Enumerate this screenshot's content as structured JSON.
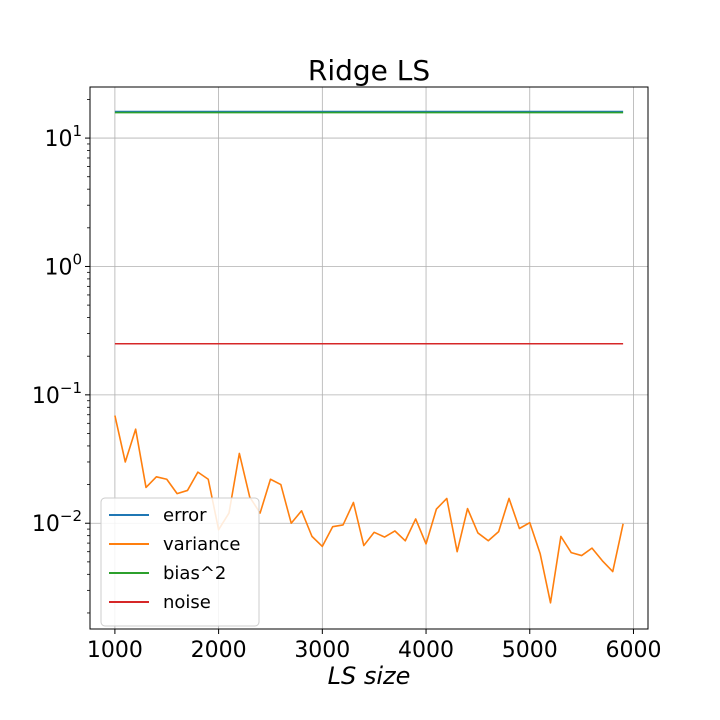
{
  "chart_data": {
    "type": "line",
    "title": "Ridge LS",
    "xlabel": "LS size",
    "ylabel": "",
    "yscale": "log",
    "xlim": [
      760,
      6140
    ],
    "ylim": [
      0.0015,
      25
    ],
    "xticks": [
      1000,
      2000,
      3000,
      4000,
      5000,
      6000
    ],
    "yticks": [
      {
        "value": 10,
        "base": "10",
        "exp": "1"
      },
      {
        "value": 1,
        "base": "10",
        "exp": "0"
      },
      {
        "value": 0.1,
        "base": "10",
        "exp": "−1"
      },
      {
        "value": 0.01,
        "base": "10",
        "exp": "−2"
      }
    ],
    "grid": true,
    "legend_position": "lower-left",
    "x": [
      1000,
      1100,
      1200,
      1300,
      1400,
      1500,
      1600,
      1700,
      1800,
      1900,
      2000,
      2100,
      2200,
      2300,
      2400,
      2500,
      2600,
      2700,
      2800,
      2900,
      3000,
      3100,
      3200,
      3300,
      3400,
      3500,
      3600,
      3700,
      3800,
      3900,
      4000,
      4100,
      4200,
      4300,
      4400,
      4500,
      4600,
      4700,
      4800,
      4900,
      5000,
      5100,
      5200,
      5300,
      5400,
      5500,
      5600,
      5700,
      5800,
      5900
    ],
    "series": [
      {
        "name": "error",
        "color": "#1f77b4",
        "values": [
          16.1,
          16.1,
          16.1,
          16.1,
          16.1,
          16.1,
          16.1,
          16.1,
          16.1,
          16.1,
          16.1,
          16.1,
          16.1,
          16.1,
          16.1,
          16.1,
          16.1,
          16.1,
          16.1,
          16.1,
          16.1,
          16.1,
          16.1,
          16.1,
          16.1,
          16.1,
          16.1,
          16.1,
          16.1,
          16.1,
          16.1,
          16.1,
          16.1,
          16.1,
          16.1,
          16.1,
          16.1,
          16.1,
          16.1,
          16.1,
          16.1,
          16.1,
          16.1,
          16.1,
          16.1,
          16.1,
          16.1,
          16.1,
          16.1,
          16.1
        ]
      },
      {
        "name": "variance",
        "color": "#ff7f0e",
        "values": [
          0.069,
          0.03,
          0.054,
          0.019,
          0.023,
          0.022,
          0.017,
          0.018,
          0.025,
          0.022,
          0.0089,
          0.012,
          0.035,
          0.016,
          0.012,
          0.022,
          0.02,
          0.01,
          0.0125,
          0.0079,
          0.0066,
          0.0094,
          0.0097,
          0.0145,
          0.0067,
          0.0085,
          0.0078,
          0.0087,
          0.0073,
          0.0108,
          0.0069,
          0.0129,
          0.0156,
          0.006,
          0.013,
          0.0084,
          0.0073,
          0.0086,
          0.0156,
          0.0091,
          0.0101,
          0.0058,
          0.0024,
          0.0079,
          0.0059,
          0.0056,
          0.0064,
          0.0051,
          0.0042,
          0.0099
        ]
      },
      {
        "name": "bias^2",
        "color": "#2ca02c",
        "values": [
          15.8,
          15.8,
          15.8,
          15.8,
          15.8,
          15.8,
          15.8,
          15.8,
          15.8,
          15.8,
          15.8,
          15.8,
          15.8,
          15.8,
          15.8,
          15.8,
          15.8,
          15.8,
          15.8,
          15.8,
          15.8,
          15.8,
          15.8,
          15.8,
          15.8,
          15.8,
          15.8,
          15.8,
          15.8,
          15.8,
          15.8,
          15.8,
          15.8,
          15.8,
          15.8,
          15.8,
          15.8,
          15.8,
          15.8,
          15.8,
          15.8,
          15.8,
          15.8,
          15.8,
          15.8,
          15.8,
          15.8,
          15.8,
          15.8,
          15.8
        ]
      },
      {
        "name": "noise",
        "color": "#d62728",
        "values": [
          0.25,
          0.25,
          0.25,
          0.25,
          0.25,
          0.25,
          0.25,
          0.25,
          0.25,
          0.25,
          0.25,
          0.25,
          0.25,
          0.25,
          0.25,
          0.25,
          0.25,
          0.25,
          0.25,
          0.25,
          0.25,
          0.25,
          0.25,
          0.25,
          0.25,
          0.25,
          0.25,
          0.25,
          0.25,
          0.25,
          0.25,
          0.25,
          0.25,
          0.25,
          0.25,
          0.25,
          0.25,
          0.25,
          0.25,
          0.25,
          0.25,
          0.25,
          0.25,
          0.25,
          0.25,
          0.25,
          0.25,
          0.25,
          0.25,
          0.25
        ]
      }
    ]
  }
}
